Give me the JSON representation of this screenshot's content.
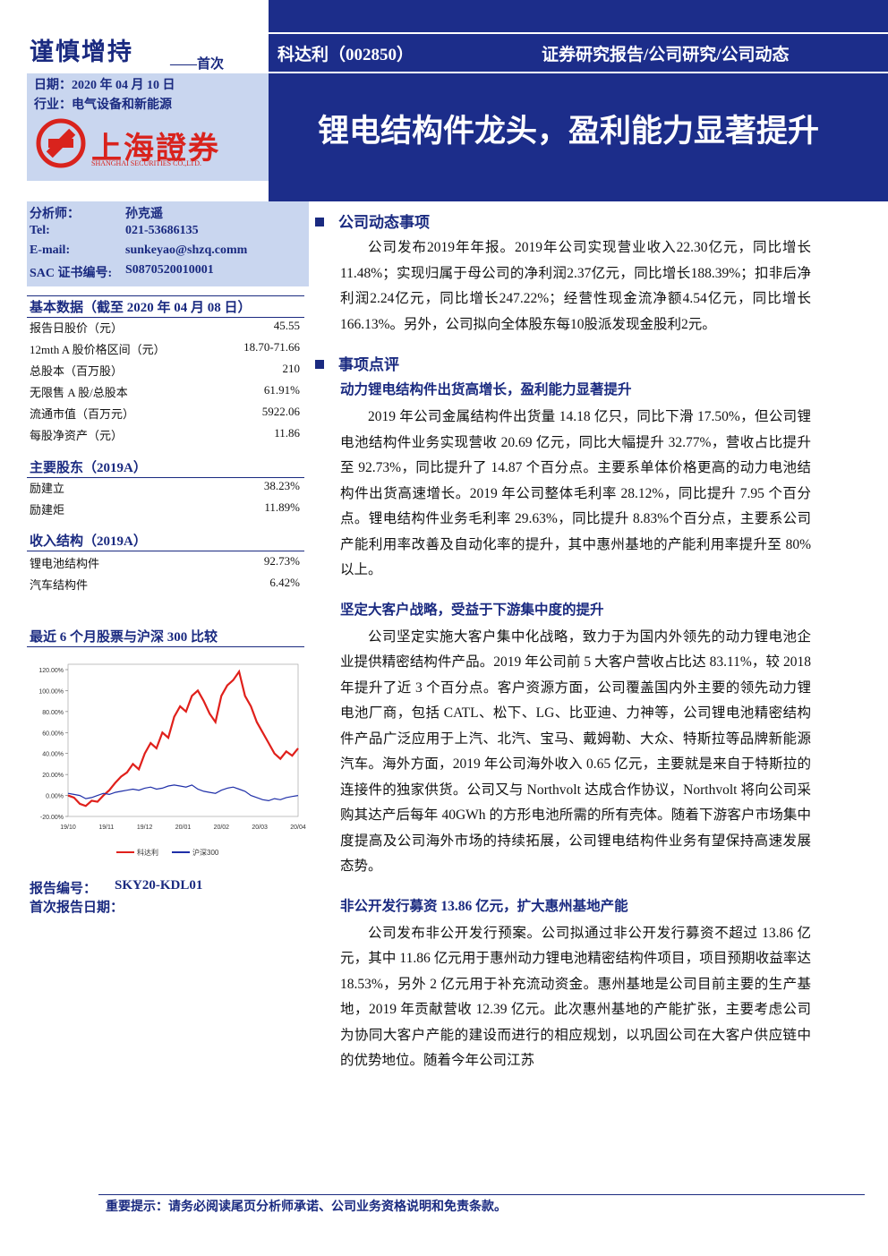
{
  "header": {
    "rating": "谨慎增持",
    "rating_note": "——首次",
    "date": "日期：2020 年 04 月 10 日",
    "industry": "行业：电气设备和新能源",
    "logo_cn": "上海證券",
    "logo_en": "SHANGHAI SECURITIES CO.,LTD.",
    "stock": "科达利（002850）",
    "report_type": "证券研究报告/公司研究/公司动态",
    "title": "锂电结构件龙头，盈利能力显著提升"
  },
  "analyst": {
    "rows": [
      [
        "分析师：",
        "孙克遥"
      ],
      [
        "Tel:",
        "021-53686135"
      ],
      [
        "E-mail:",
        "sunkeyao@shzq.comm"
      ],
      [
        "SAC 证书编号:",
        "S0870520010001"
      ]
    ]
  },
  "basic_data": {
    "title": "基本数据（截至 2020 年 04 月 08 日）",
    "rows": [
      [
        "报告日股价（元）",
        "45.55"
      ],
      [
        "12mth A 股价格区间（元）",
        "18.70-71.66"
      ],
      [
        "总股本（百万股）",
        "210"
      ],
      [
        "无限售 A 股/总股本",
        "61.91%"
      ],
      [
        "流通市值（百万元）",
        "5922.06"
      ],
      [
        "每股净资产（元）",
        "11.86"
      ]
    ]
  },
  "shareholders": {
    "title": "主要股东（2019A）",
    "rows": [
      [
        "励建立",
        "38.23%"
      ],
      [
        "励建炬",
        "11.89%"
      ]
    ]
  },
  "revenue": {
    "title": "收入结构（2019A）",
    "rows": [
      [
        "锂电池结构件",
        "92.73%"
      ],
      [
        "汽车结构件",
        "6.42%"
      ]
    ]
  },
  "stock_chart": {
    "type": "line",
    "title": "最近 6 个月股票与沪深 300 比较",
    "x_labels": [
      "19/10",
      "19/11",
      "19/12",
      "20/01",
      "20/02",
      "20/03",
      "20/04"
    ],
    "ylim": [
      -20,
      120
    ],
    "yticks": [
      {
        "value": -20,
        "label": "-20.00%"
      },
      {
        "value": 0,
        "label": "0.00%"
      },
      {
        "value": 20,
        "label": "20.00%"
      },
      {
        "value": 40,
        "label": "40.00%"
      },
      {
        "value": 60,
        "label": "60.00%"
      },
      {
        "value": 80,
        "label": "80.00%"
      },
      {
        "value": 100,
        "label": "100.00%"
      },
      {
        "value": 120,
        "label": "120.00%"
      }
    ],
    "series": [
      {
        "name": "科达利",
        "color": "#e0201b",
        "values": [
          0,
          -2,
          -8,
          -10,
          -5,
          -6,
          0,
          5,
          12,
          18,
          22,
          30,
          25,
          40,
          50,
          45,
          60,
          55,
          75,
          85,
          80,
          95,
          100,
          90,
          78,
          70,
          95,
          105,
          110,
          118,
          95,
          85,
          70,
          60,
          50,
          40,
          35,
          42,
          38,
          45
        ]
      },
      {
        "name": "沪深300",
        "color": "#1f2fa8",
        "values": [
          2,
          1,
          0,
          -3,
          -2,
          0,
          2,
          1,
          3,
          4,
          5,
          6,
          5,
          7,
          8,
          6,
          7,
          9,
          10,
          9,
          8,
          10,
          6,
          4,
          3,
          2,
          5,
          7,
          8,
          6,
          4,
          0,
          -2,
          -4,
          -5,
          -3,
          -4,
          -2,
          -1,
          0
        ]
      }
    ]
  },
  "report_info": {
    "number_label": "报告编号：",
    "number": "SKY20-KDL01",
    "first_date_label": "首次报告日期："
  },
  "sections": [
    {
      "heading": "公司动态事项",
      "blocks": [
        {
          "paragraph": "公司发布2019年年报。2019年公司实现营业收入22.30亿元，同比增长11.48%；实现归属于母公司的净利润2.37亿元，同比增长188.39%；扣非后净利润2.24亿元，同比增长247.22%；经营性现金流净额4.54亿元，同比增长166.13%。另外，公司拟向全体股东每10股派发现金股利2元。"
        }
      ]
    },
    {
      "heading": "事项点评",
      "blocks": [
        {
          "subtitle": "动力锂电结构件出货高增长，盈利能力显著提升",
          "paragraph": "2019 年公司金属结构件出货量 14.18 亿只，同比下滑 17.50%，但公司锂电池结构件业务实现营收 20.69 亿元，同比大幅提升 32.77%，营收占比提升至 92.73%，同比提升了 14.87 个百分点。主要系单体价格更高的动力电池结构件出货高速增长。2019 年公司整体毛利率 28.12%，同比提升 7.95 个百分点。锂电结构件业务毛利率 29.63%，同比提升 8.83%个百分点，主要系公司产能利用率改善及自动化率的提升，其中惠州基地的产能利用率提升至 80%以上。"
        },
        {
          "subtitle": "坚定大客户战略，受益于下游集中度的提升",
          "paragraph": "公司坚定实施大客户集中化战略，致力于为国内外领先的动力锂电池企业提供精密结构件产品。2019 年公司前 5 大客户营收占比达 83.11%，较 2018 年提升了近 3 个百分点。客户资源方面，公司覆盖国内外主要的领先动力锂电池厂商，包括 CATL、松下、LG、比亚迪、力神等，公司锂电池精密结构件产品广泛应用于上汽、北汽、宝马、戴姆勒、大众、特斯拉等品牌新能源汽车。海外方面，2019 年公司海外收入 0.65 亿元，主要就是来自于特斯拉的连接件的独家供货。公司又与 Northvolt 达成合作协议，Northvolt 将向公司采购其达产后每年 40GWh 的方形电池所需的所有壳体。随着下游客户市场集中度提高及公司海外市场的持续拓展，公司锂电结构件业务有望保持高速发展态势。"
        },
        {
          "subtitle": "非公开发行募资 13.86 亿元，扩大惠州基地产能",
          "paragraph": "公司发布非公开发行预案。公司拟通过非公开发行募资不超过 13.86 亿元，其中 11.86 亿元用于惠州动力锂电池精密结构件项目，项目预期收益率达 18.53%，另外 2 亿元用于补充流动资金。惠州基地是公司目前主要的生产基地，2019 年贡献营收 12.39 亿元。此次惠州基地的产能扩张，主要考虑公司为协同大客户产能的建设而进行的相应规划，以巩固公司在大客户供应链中的优势地位。随着今年公司江苏"
        }
      ]
    }
  ],
  "footer": "重要提示：请务必阅读尾页分析师承诺、公司业务资格说明和免责条款。"
}
